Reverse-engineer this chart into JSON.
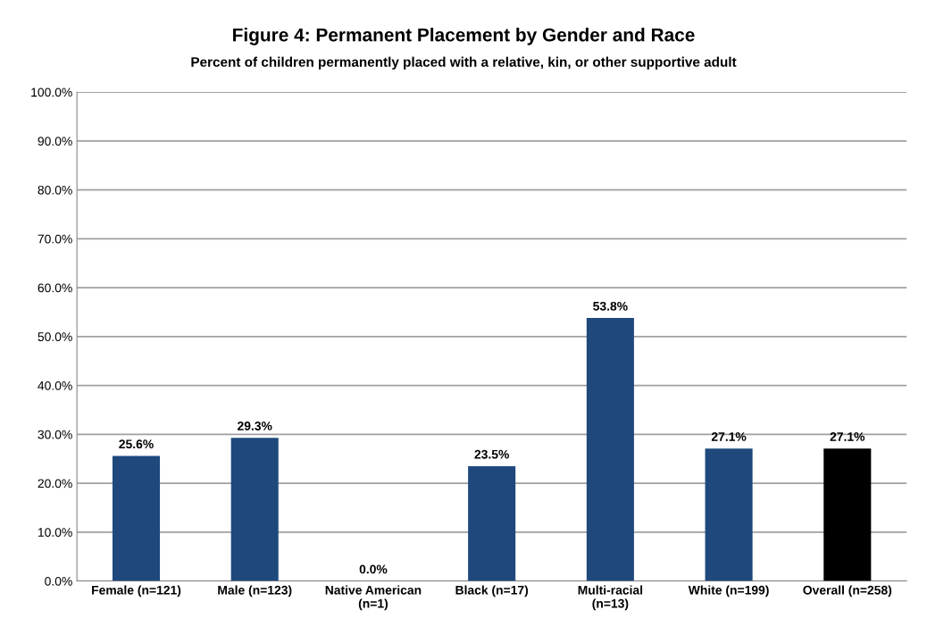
{
  "chart_data": {
    "type": "bar",
    "title": "Figure 4: Permanent Placement by Gender and Race",
    "subtitle": "Percent of children permanently placed with a relative, kin, or other supportive adult",
    "categories": [
      "Female (n=121)",
      "Male (n=123)",
      "Native American\n(n=1)",
      "Black (n=17)",
      "Multi-racial\n(n=13)",
      "White (n=199)",
      "Overall (n=258)"
    ],
    "values": [
      25.6,
      29.3,
      0.0,
      23.5,
      53.8,
      27.1,
      27.1
    ],
    "colors": [
      "#1f497d",
      "#1f497d",
      "#1f497d",
      "#1f497d",
      "#1f497d",
      "#1f497d",
      "#000000"
    ],
    "value_labels": [
      "25.6%",
      "29.3%",
      "0.0%",
      "23.5%",
      "53.8%",
      "27.1%",
      "27.1%"
    ],
    "ylim": [
      0,
      100
    ],
    "yticks": [
      {
        "value": 0,
        "label": "0.0%"
      },
      {
        "value": 10,
        "label": "10.0%"
      },
      {
        "value": 20,
        "label": "20.0%"
      },
      {
        "value": 30,
        "label": "30.0%"
      },
      {
        "value": 40,
        "label": "40.0%"
      },
      {
        "value": 50,
        "label": "50.0%"
      },
      {
        "value": 60,
        "label": "60.0%"
      },
      {
        "value": 70,
        "label": "70.0%"
      },
      {
        "value": 80,
        "label": "80.0%"
      },
      {
        "value": 90,
        "label": "90.0%"
      },
      {
        "value": 100,
        "label": "100.0%"
      }
    ],
    "grid": "y"
  }
}
